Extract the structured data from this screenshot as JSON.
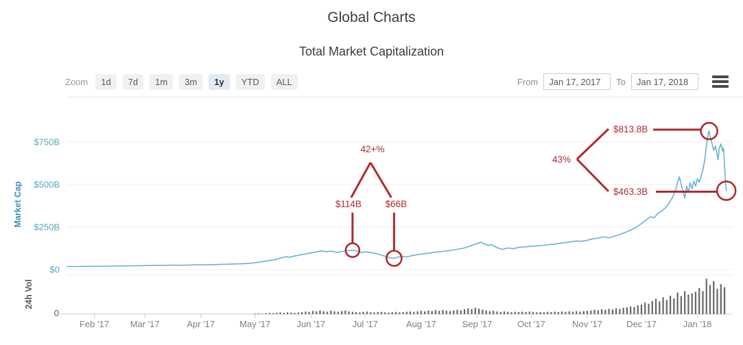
{
  "header": {
    "title": "Global Charts",
    "subtitle": "Total Market Capitalization"
  },
  "toolbar": {
    "zoom_label": "Zoom",
    "zoom_options": [
      "1d",
      "7d",
      "1m",
      "3m",
      "1y",
      "YTD",
      "ALL"
    ],
    "zoom_selected": "1y",
    "from_label": "From",
    "from_value": "Jan 17, 2017",
    "to_label": "To",
    "to_value": "Jan 17, 2018",
    "menu_icon": "hamburger-icon"
  },
  "chart_data": {
    "type": "line+bar",
    "title": "Total Market Capitalization",
    "x_start_date": "Jan 17, 2017",
    "x_end_date": "Jan 17, 2018",
    "x_range_days": [
      0,
      365
    ],
    "grid": true,
    "colors": {
      "line": "#66b3d1",
      "volume_bar": "#63666a",
      "annotation": "#b2292e",
      "y_tick_text": "#57a5c4",
      "y_axis_title": "#3e8fb0",
      "y2_text": "#565a5e",
      "x_tick_text": "#7b7e82",
      "gridline": "#ececec",
      "top_border": "#dde2e7",
      "baseline": "#c9ced3"
    },
    "y_axis": {
      "label": "Market Cap",
      "unit": "USD billions",
      "max": 1000,
      "ticks": [
        {
          "v": 0,
          "label": "$0"
        },
        {
          "v": 250,
          "label": "$250B"
        },
        {
          "v": 500,
          "label": "$500B"
        },
        {
          "v": 750,
          "label": "$750B"
        }
      ]
    },
    "y2_axis": {
      "label": "24h Vol",
      "unit": "USD billions",
      "max": 50,
      "ticks": [
        {
          "v": 0,
          "label": "0"
        }
      ]
    },
    "x_ticks": [
      {
        "day": 15,
        "label": "Feb '17"
      },
      {
        "day": 43,
        "label": "Mar '17"
      },
      {
        "day": 74,
        "label": "Apr '17"
      },
      {
        "day": 104,
        "label": "May '17"
      },
      {
        "day": 135,
        "label": "Jun '17"
      },
      {
        "day": 165,
        "label": "Jul '17"
      },
      {
        "day": 196,
        "label": "Aug '17"
      },
      {
        "day": 227,
        "label": "Sep '17"
      },
      {
        "day": 257,
        "label": "Oct '17"
      },
      {
        "day": 288,
        "label": "Nov '17"
      },
      {
        "day": 318,
        "label": "Dec '17"
      },
      {
        "day": 349,
        "label": "Jan '18"
      }
    ],
    "market_cap_series": [
      [
        0,
        18
      ],
      [
        6,
        18
      ],
      [
        12,
        19
      ],
      [
        18,
        19
      ],
      [
        24,
        20
      ],
      [
        30,
        21
      ],
      [
        36,
        22
      ],
      [
        42,
        23
      ],
      [
        48,
        25
      ],
      [
        54,
        25
      ],
      [
        58,
        26
      ],
      [
        62,
        25
      ],
      [
        66,
        26
      ],
      [
        72,
        28
      ],
      [
        78,
        28
      ],
      [
        84,
        30
      ],
      [
        90,
        32
      ],
      [
        96,
        34
      ],
      [
        100,
        36
      ],
      [
        104,
        40
      ],
      [
        108,
        46
      ],
      [
        112,
        53
      ],
      [
        116,
        60
      ],
      [
        119,
        70
      ],
      [
        121,
        76
      ],
      [
        123,
        72
      ],
      [
        126,
        80
      ],
      [
        129,
        86
      ],
      [
        132,
        92
      ],
      [
        135,
        98
      ],
      [
        138,
        104
      ],
      [
        141,
        110
      ],
      [
        143,
        105
      ],
      [
        146,
        109
      ],
      [
        149,
        101
      ],
      [
        152,
        106
      ],
      [
        155,
        111
      ],
      [
        158,
        114
      ],
      [
        161,
        107
      ],
      [
        163,
        99
      ],
      [
        165,
        104
      ],
      [
        168,
        100
      ],
      [
        171,
        94
      ],
      [
        174,
        85
      ],
      [
        177,
        75
      ],
      [
        179,
        68
      ],
      [
        181,
        66
      ],
      [
        183,
        72
      ],
      [
        185,
        78
      ],
      [
        188,
        74
      ],
      [
        191,
        82
      ],
      [
        194,
        88
      ],
      [
        197,
        92
      ],
      [
        200,
        96
      ],
      [
        204,
        102
      ],
      [
        208,
        107
      ],
      [
        212,
        112
      ],
      [
        216,
        119
      ],
      [
        220,
        127
      ],
      [
        223,
        138
      ],
      [
        226,
        150
      ],
      [
        229,
        160
      ],
      [
        231,
        152
      ],
      [
        233,
        141
      ],
      [
        235,
        147
      ],
      [
        238,
        129
      ],
      [
        241,
        118
      ],
      [
        244,
        127
      ],
      [
        247,
        122
      ],
      [
        250,
        130
      ],
      [
        254,
        134
      ],
      [
        258,
        138
      ],
      [
        262,
        141
      ],
      [
        266,
        145
      ],
      [
        270,
        150
      ],
      [
        274,
        156
      ],
      [
        278,
        161
      ],
      [
        282,
        168
      ],
      [
        285,
        166
      ],
      [
        288,
        172
      ],
      [
        291,
        180
      ],
      [
        294,
        186
      ],
      [
        297,
        192
      ],
      [
        300,
        186
      ],
      [
        303,
        196
      ],
      [
        306,
        206
      ],
      [
        309,
        218
      ],
      [
        312,
        232
      ],
      [
        315,
        248
      ],
      [
        317,
        262
      ],
      [
        319,
        278
      ],
      [
        321,
        295
      ],
      [
        323,
        310
      ],
      [
        325,
        305
      ],
      [
        327,
        328
      ],
      [
        329,
        342
      ],
      [
        331,
        360
      ],
      [
        333,
        385
      ],
      [
        335,
        420
      ],
      [
        337,
        470
      ],
      [
        338,
        510
      ],
      [
        339,
        545
      ],
      [
        340,
        500
      ],
      [
        341,
        460
      ],
      [
        342,
        420
      ],
      [
        343,
        490
      ],
      [
        344,
        455
      ],
      [
        345,
        510
      ],
      [
        346,
        475
      ],
      [
        347,
        520
      ],
      [
        348,
        490
      ],
      [
        349,
        535
      ],
      [
        350,
        512
      ],
      [
        351,
        548
      ],
      [
        352,
        585
      ],
      [
        353,
        640
      ],
      [
        354,
        730
      ],
      [
        355,
        805
      ],
      [
        355.5,
        813.8
      ],
      [
        356,
        780
      ],
      [
        357,
        745
      ],
      [
        358,
        700
      ],
      [
        359,
        725
      ],
      [
        360,
        672
      ],
      [
        360.5,
        645
      ],
      [
        361,
        712
      ],
      [
        362,
        738
      ],
      [
        363,
        695
      ],
      [
        363.5,
        715
      ],
      [
        364,
        620
      ],
      [
        364.5,
        520
      ],
      [
        365,
        463.3
      ]
    ],
    "volume_series": {
      "start_day": 104,
      "step_days": 2,
      "values": [
        0.7,
        1.0,
        0.8,
        1.3,
        1.6,
        1.2,
        1.8,
        2.2,
        1.7,
        2.4,
        2.0,
        1.6,
        2.1,
        2.6,
        3.4,
        2.9,
        4.2,
        3.6,
        4.6,
        3.8,
        3.2,
        4.4,
        3.7,
        3.1,
        3.9,
        4.7,
        3.5,
        3.0,
        2.7,
        2.3,
        2.9,
        3.3,
        2.5,
        2.1,
        2.6,
        3.0,
        2.4,
        2.0,
        2.5,
        2.9,
        2.3,
        2.7,
        3.1,
        3.4,
        3.0,
        3.7,
        4.2,
        3.5,
        4.6,
        3.9,
        5.1,
        4.3,
        5.4,
        4.6,
        4.0,
        4.9,
        5.6,
        4.7,
        6.2,
        7.4,
        6.6,
        8.2,
        7.0,
        6.0,
        4.8,
        3.9,
        4.4,
        3.4,
        2.9,
        3.5,
        3.0,
        2.6,
        3.1,
        2.7,
        3.2,
        2.8,
        3.3,
        2.9,
        2.4,
        2.8,
        2.3,
        3.0,
        2.6,
        3.2,
        2.7,
        3.4,
        2.9,
        3.6,
        3.1,
        3.8,
        3.3,
        4.0,
        4.4,
        4.8,
        5.6,
        5.0,
        6.4,
        5.7,
        7.0,
        6.2,
        7.6,
        6.8,
        8.2,
        8.8,
        10.0,
        9.2,
        11.5,
        12.5,
        15.0,
        13.5,
        17.0,
        20.0,
        16.5,
        22.0,
        18.5,
        24.0,
        20.5,
        28.0,
        23.5,
        30.0,
        25.5,
        27.0,
        29.0,
        34.0,
        30.0,
        46.0,
        38.0,
        43.0,
        33.0,
        39.0,
        35.0
      ]
    },
    "annotations": {
      "color": "#b2292e",
      "summer": {
        "percent_label": "42+%",
        "peak": {
          "label": "$114B",
          "day": 158,
          "value": 114
        },
        "dip": {
          "label": "$66B",
          "day": 181,
          "value": 66
        }
      },
      "winter": {
        "percent_label": "43%",
        "peak": {
          "label": "$813.8B",
          "day": 355.5,
          "value": 813.8
        },
        "end": {
          "label": "$463.3B",
          "day": 365,
          "value": 463.3
        }
      }
    }
  }
}
